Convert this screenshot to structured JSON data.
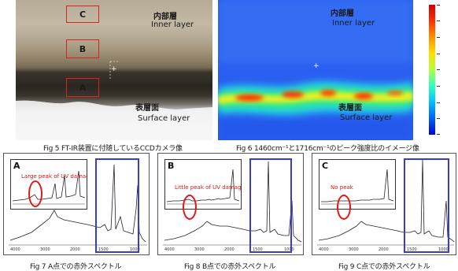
{
  "fig5": {
    "caption": "Fig 5 FT-IR装置に付随しているCCDカメラ像",
    "boxes": [
      "C",
      "B",
      "A"
    ],
    "inner_jp": "内部層",
    "inner_en": "Inner layer",
    "surface_jp": "表層面",
    "surface_en": "Surface layer"
  },
  "fig6": {
    "caption": "Fig 6 1460cm⁻¹と1716cm⁻¹のピーク強度比のイメージ像",
    "inner_jp": "内部層",
    "inner_en": "Inner layer",
    "surface_jp": "表層面",
    "surface_en": "Surface layer",
    "colorbar": [
      "#d00000",
      "#ff3000",
      "#ff9000",
      "#ffe000",
      "#b0ff40",
      "#30ffc0",
      "#00c0ff",
      "#0060ff",
      "#0000d0"
    ]
  },
  "fig7": {
    "caption": "Fig 7 A点での赤外スペクトル",
    "inset_letter": "A",
    "annotation": "Large peak of UV damage"
  },
  "fig8": {
    "caption": "Fig 8 B点での赤外スペクトル",
    "inset_letter": "B",
    "annotation": "Little peak of UV damage"
  },
  "fig9": {
    "caption": "Fig 9 C点での赤外スペクトル",
    "inset_letter": "C",
    "annotation": "No peak"
  }
}
